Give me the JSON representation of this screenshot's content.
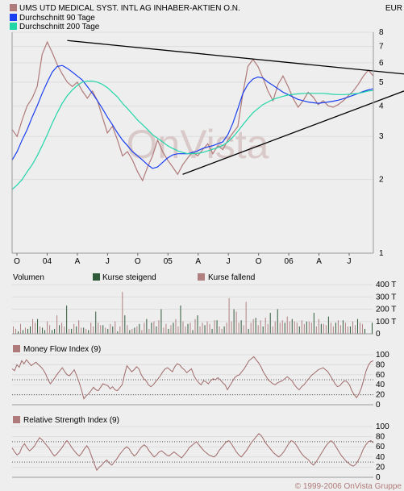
{
  "title": "UMS UTD MEDICAL SYST. INTL AG INHABER-AKTIEN O.N.",
  "currency": "EUR",
  "watermark": "OnVista",
  "copyright": "© 1999-2006 OnVista Gruppe",
  "colors": {
    "background": "#eeeeee",
    "price": "#b07a7a",
    "ma90": "#1a3ff0",
    "ma200": "#22d6a8",
    "trendline": "#000000",
    "rising": "#2e5a3a",
    "falling": "#b08080",
    "indicator": "#a06a6a"
  },
  "legend": [
    {
      "label": "UMS UTD MEDICAL SYST. INTL AG INHABER-AKTIEN O.N.",
      "color": "#b07a7a"
    },
    {
      "label": "Durchschnitt 90 Tage",
      "color": "#1a3ff0"
    },
    {
      "label": "Durchschnitt 200 Tage",
      "color": "#22d6a8"
    }
  ],
  "x_ticks": [
    "O",
    "04",
    "A",
    "J",
    "O",
    "05",
    "A",
    "J",
    "O",
    "06",
    "A",
    "J"
  ],
  "volume_legend": {
    "title": "Volumen",
    "rising": "Kurse steigend",
    "falling": "Kurse fallend"
  },
  "volume_ticks": [
    "400 T",
    "300 T",
    "200 T",
    "100 T",
    "0"
  ],
  "mfi_title": "Money Flow Index (9)",
  "rsi_title": "Relative Strength Index (9)",
  "osc_ticks": [
    "100",
    "80",
    "60",
    "40",
    "20",
    "0"
  ],
  "chart_data": [
    {
      "type": "line",
      "scale": "log",
      "y_ticks": [
        8,
        7,
        6,
        5,
        4,
        3,
        2,
        1
      ],
      "ylim": [
        1,
        8
      ],
      "x": [
        0,
        0.5,
        1,
        1.5,
        2,
        2.5,
        3,
        3.5,
        4,
        4.5,
        5,
        5.5,
        6,
        6.5,
        7,
        7.5,
        8,
        8.5,
        9,
        9.5,
        10,
        10.5,
        11,
        11.5,
        12,
        12.5,
        13,
        13.5,
        14,
        14.5,
        15,
        15.5,
        16,
        16.5,
        17,
        17.5,
        18,
        18.5,
        19,
        19.5,
        20,
        20.5,
        21,
        21.5,
        22,
        22.5,
        23,
        23.5,
        24,
        24.5,
        25,
        25.5,
        26,
        26.5,
        27,
        27.5,
        28,
        28.5,
        29,
        29.5,
        30,
        30.5,
        31,
        31.5,
        32,
        32.5,
        33,
        33.5,
        34,
        34.5,
        35,
        35.5,
        36
      ],
      "series": [
        {
          "name": "UMS UTD MEDICAL SYST. INTL AG INHABER-AKTIEN O.N.",
          "values": [
            3.2,
            3.0,
            3.5,
            4.0,
            4.3,
            4.8,
            6.5,
            7.3,
            6.6,
            5.9,
            5.4,
            5.0,
            4.8,
            5.0,
            4.6,
            4.3,
            4.6,
            4.2,
            3.6,
            3.1,
            3.3,
            2.9,
            2.5,
            2.6,
            2.4,
            2.15,
            1.98,
            2.25,
            2.5,
            2.9,
            2.6,
            2.4,
            2.25,
            2.1,
            2.3,
            2.45,
            2.6,
            2.5,
            2.65,
            2.8,
            2.55,
            2.75,
            2.65,
            2.9,
            3.1,
            3.3,
            4.5,
            5.8,
            6.2,
            5.8,
            5.2,
            4.6,
            4.2,
            4.9,
            5.3,
            4.8,
            4.3,
            3.95,
            4.2,
            4.55,
            4.35,
            4.05,
            4.2,
            4.0,
            3.95,
            4.05,
            4.2,
            4.4,
            4.6,
            4.9,
            5.3,
            5.6,
            5.3
          ]
        },
        {
          "name": "Durchschnitt 90 Tage",
          "values": [
            2.4,
            2.6,
            2.9,
            3.2,
            3.6,
            4.0,
            4.5,
            5.0,
            5.5,
            5.8,
            5.85,
            5.7,
            5.5,
            5.3,
            5.1,
            4.8,
            4.5,
            4.2,
            3.9,
            3.6,
            3.35,
            3.1,
            2.9,
            2.75,
            2.6,
            2.5,
            2.4,
            2.3,
            2.22,
            2.25,
            2.35,
            2.45,
            2.52,
            2.55,
            2.55,
            2.55,
            2.58,
            2.62,
            2.68,
            2.72,
            2.75,
            2.8,
            2.85,
            3.05,
            3.4,
            3.9,
            4.5,
            4.9,
            5.15,
            5.25,
            5.2,
            5.0,
            4.85,
            4.7,
            4.55,
            4.45,
            4.35,
            4.25,
            4.2,
            4.15,
            4.12,
            4.1,
            4.12,
            4.15,
            4.18,
            4.22,
            4.28,
            4.35,
            4.42,
            4.5,
            4.58,
            4.65,
            4.7
          ]
        },
        {
          "name": "Durchschnitt 200 Tage",
          "values": [
            1.82,
            1.9,
            2.0,
            2.15,
            2.3,
            2.5,
            2.75,
            3.05,
            3.4,
            3.75,
            4.1,
            4.4,
            4.65,
            4.85,
            5.0,
            5.05,
            5.05,
            5.0,
            4.9,
            4.75,
            4.55,
            4.35,
            4.1,
            3.9,
            3.7,
            3.5,
            3.35,
            3.2,
            3.05,
            2.95,
            2.85,
            2.75,
            2.68,
            2.62,
            2.58,
            2.55,
            2.55,
            2.56,
            2.58,
            2.62,
            2.66,
            2.7,
            2.76,
            2.85,
            2.98,
            3.15,
            3.35,
            3.55,
            3.75,
            3.9,
            4.05,
            4.15,
            4.25,
            4.32,
            4.38,
            4.43,
            4.46,
            4.48,
            4.5,
            4.5,
            4.5,
            4.5,
            4.5,
            4.48,
            4.46,
            4.45,
            4.45,
            4.46,
            4.48,
            4.5,
            4.55,
            4.6,
            4.62
          ]
        }
      ],
      "trendlines": [
        {
          "from": [
            5.5,
            7.4
          ],
          "to": [
            43.5,
            5.4
          ]
        },
        {
          "from": [
            17,
            2.1
          ],
          "to": [
            43.5,
            4.6
          ]
        }
      ]
    },
    {
      "type": "bar",
      "title": "Volumen",
      "ylim": [
        0,
        400
      ],
      "unit": "T",
      "rising": [
        0,
        0,
        20,
        0,
        30,
        0,
        40,
        60,
        0,
        0,
        120,
        0,
        50,
        30,
        0,
        0,
        30,
        40,
        0,
        70,
        0,
        0,
        230,
        0,
        40,
        0,
        60,
        0,
        0,
        50,
        0,
        30,
        0,
        0,
        180,
        0,
        0,
        70,
        0,
        40,
        0,
        60,
        0,
        20,
        0,
        0,
        150,
        0,
        30,
        0,
        50,
        0,
        80,
        0,
        0,
        120,
        0,
        90,
        0,
        60,
        0,
        200,
        0,
        0,
        40,
        0,
        90,
        0,
        0,
        230,
        0,
        0,
        80,
        0,
        30,
        0,
        150,
        0,
        0,
        70,
        0,
        0,
        40,
        0,
        110,
        0,
        0,
        60,
        0,
        0,
        0,
        200,
        0,
        0,
        110,
        0,
        0,
        40,
        0,
        0,
        130,
        0,
        0,
        60,
        0,
        0,
        170,
        0,
        0,
        200,
        0,
        0,
        90,
        0,
        0,
        120,
        0,
        0,
        60,
        0,
        0,
        100,
        0,
        0,
        170,
        0,
        0,
        80,
        0,
        0,
        140,
        0,
        0,
        90,
        0,
        0,
        110,
        0,
        0,
        60,
        0,
        0,
        120,
        0,
        0,
        40,
        0,
        0,
        90
      ],
      "falling": [
        60,
        40,
        0,
        80,
        0,
        50,
        0,
        0,
        120,
        90,
        0,
        60,
        0,
        0,
        100,
        70,
        0,
        0,
        150,
        0,
        90,
        60,
        0,
        40,
        0,
        80,
        0,
        110,
        50,
        0,
        40,
        0,
        90,
        60,
        0,
        90,
        70,
        0,
        50,
        0,
        80,
        0,
        100,
        0,
        60,
        340,
        0,
        70,
        0,
        40,
        0,
        60,
        0,
        30,
        90,
        0,
        40,
        0,
        100,
        0,
        110,
        0,
        50,
        80,
        0,
        70,
        0,
        120,
        60,
        0,
        100,
        60,
        0,
        90,
        0,
        120,
        0,
        60,
        90,
        0,
        100,
        80,
        0,
        110,
        0,
        60,
        40,
        0,
        90,
        290,
        100,
        0,
        180,
        90,
        0,
        70,
        260,
        0,
        90,
        120,
        0,
        70,
        110,
        0,
        130,
        80,
        0,
        60,
        100,
        0,
        90,
        110,
        0,
        140,
        100,
        0,
        100,
        90,
        0,
        110,
        80,
        0,
        100,
        90,
        0,
        60,
        120,
        0,
        80,
        70,
        0,
        90,
        60,
        0,
        110,
        70,
        0,
        90,
        60,
        0,
        100,
        70,
        0,
        90,
        80
      ]
    },
    {
      "type": "line",
      "title": "Money Flow Index (9)",
      "ylim": [
        0,
        100
      ],
      "guides": [
        50,
        20
      ],
      "values": [
        72,
        68,
        80,
        75,
        88,
        82,
        90,
        84,
        78,
        82,
        85,
        80,
        76,
        70,
        62,
        50,
        42,
        48,
        55,
        62,
        68,
        74,
        66,
        60,
        58,
        64,
        70,
        58,
        45,
        30,
        12,
        18,
        22,
        28,
        35,
        30,
        28,
        35,
        42,
        40,
        38,
        32,
        36,
        30,
        28,
        34,
        40,
        60,
        78,
        72,
        66,
        70,
        76,
        72,
        60,
        52,
        48,
        40,
        36,
        40,
        46,
        52,
        58,
        66,
        72,
        74,
        70,
        66,
        76,
        82,
        80,
        74,
        70,
        64,
        68,
        72,
        58,
        50,
        44,
        40,
        48,
        46,
        42,
        48,
        52,
        50,
        54,
        50,
        44,
        40,
        30,
        38,
        46,
        54,
        58,
        60,
        66,
        72,
        80,
        88,
        92,
        96,
        90,
        84,
        76,
        66,
        58,
        50,
        46,
        42,
        40,
        44,
        46,
        48,
        52,
        56,
        52,
        48,
        40,
        34,
        30,
        36,
        40,
        46,
        52,
        58,
        62,
        66,
        70,
        72,
        74,
        70,
        66,
        58,
        50,
        42,
        36,
        38,
        44,
        48,
        46,
        40,
        28,
        20,
        14,
        22,
        34,
        50,
        68,
        80,
        86,
        88
      ]
    },
    {
      "type": "line",
      "title": "Relative Strength Index (9)",
      "ylim": [
        0,
        100
      ],
      "guides": [
        70,
        30
      ],
      "values": [
        58,
        50,
        44,
        48,
        60,
        66,
        58,
        52,
        56,
        62,
        70,
        78,
        74,
        68,
        62,
        56,
        48,
        42,
        46,
        52,
        58,
        66,
        72,
        66,
        58,
        52,
        46,
        42,
        48,
        56,
        62,
        54,
        40,
        26,
        14,
        20,
        24,
        30,
        34,
        28,
        24,
        30,
        36,
        44,
        50,
        56,
        60,
        56,
        48,
        42,
        46,
        54,
        60,
        64,
        60,
        52,
        46,
        40,
        44,
        50,
        52,
        48,
        44,
        42,
        46,
        50,
        46,
        42,
        38,
        44,
        50,
        58,
        62,
        66,
        70,
        64,
        58,
        52,
        48,
        44,
        42,
        40,
        44,
        52,
        58,
        64,
        70,
        72,
        66,
        58,
        50,
        44,
        40,
        46,
        52,
        60,
        68,
        74,
        80,
        86,
        82,
        74,
        66,
        60,
        54,
        48,
        44,
        40,
        44,
        50,
        58,
        66,
        72,
        70,
        64,
        56,
        48,
        42,
        38,
        34,
        28,
        24,
        30,
        38,
        46,
        54,
        62,
        68,
        72,
        68,
        60,
        52,
        44,
        38,
        32,
        28,
        24,
        22,
        26,
        34,
        44,
        56,
        64,
        70,
        72,
        68
      ]
    }
  ]
}
